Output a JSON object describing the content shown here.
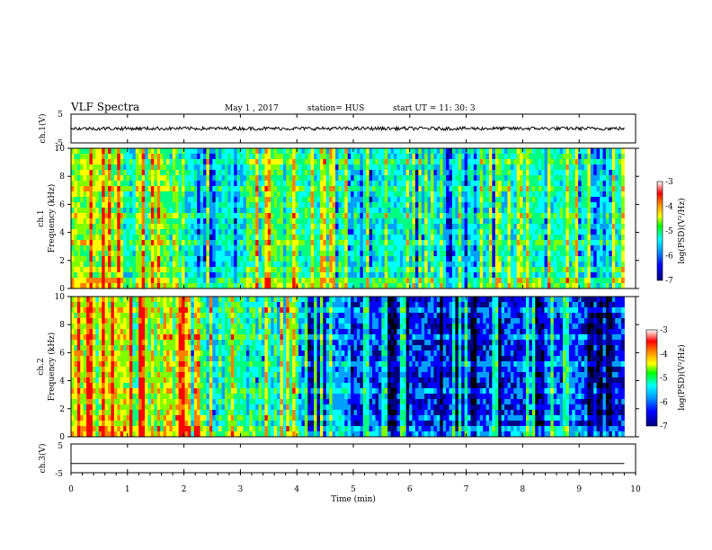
{
  "header": {
    "title": "VLF Spectra",
    "date": "May 1 , 2017",
    "station": "station= HUS",
    "start": "start UT =  11: 30: 3"
  },
  "chart_data": [
    {
      "type": "line",
      "panel": "waveform",
      "ylabel": "ch.1(V)",
      "ylim": [
        -5,
        5
      ],
      "yticks": [
        "5",
        "-5"
      ],
      "x": [
        0,
        9.8
      ],
      "values": [
        0,
        0
      ],
      "amplitude_note_v": 0.6,
      "color": "#000000"
    },
    {
      "type": "heatmap",
      "panel": "ch1-spectrogram",
      "ylabel": "ch.1",
      "ylabel2": "Frequency (kHz)",
      "ylim": [
        0,
        10
      ],
      "yticks": [
        "0",
        "2",
        "4",
        "6",
        "8",
        "10"
      ],
      "xlim": [
        0,
        9.8
      ],
      "colorbar": {
        "label": "log(PSD)(V²/Hz)",
        "ticks": [
          "-3",
          "-4",
          "-5",
          "-6",
          "-7"
        ],
        "range": [
          -7,
          -3
        ]
      },
      "intensity_by_minute": [
        0.65,
        0.62,
        0.45,
        0.58,
        0.5,
        0.45,
        0.4,
        0.45,
        0.5,
        0.48
      ]
    },
    {
      "type": "heatmap",
      "panel": "ch2-spectrogram",
      "ylabel": "ch.2",
      "ylabel2": "Frequency (kHz)",
      "ylim": [
        0,
        10
      ],
      "yticks": [
        "0",
        "2",
        "4",
        "6",
        "8",
        "10"
      ],
      "xlim": [
        0,
        9.8
      ],
      "colorbar": {
        "label": "log(PSD)(V²/Hz)",
        "ticks": [
          "-3",
          "-4",
          "-5",
          "-6",
          "-7"
        ],
        "range": [
          -7,
          -3
        ]
      },
      "intensity_by_minute": [
        0.7,
        0.72,
        0.55,
        0.55,
        0.35,
        0.25,
        0.25,
        0.25,
        0.3,
        0.25
      ]
    },
    {
      "type": "line",
      "panel": "ch3-waveform",
      "ylabel": "ch.3(V)",
      "ylim": [
        -5,
        5
      ],
      "yticks": [
        "5",
        "-5"
      ],
      "x": [
        0,
        9.8
      ],
      "values": [
        -1.8,
        -1.8
      ],
      "color": "#000000"
    }
  ],
  "xaxis": {
    "label": "Time (min)",
    "ticks": [
      "0",
      "1",
      "2",
      "3",
      "4",
      "5",
      "6",
      "7",
      "8",
      "9",
      "10"
    ],
    "xlim": [
      0,
      10
    ]
  },
  "colors": {
    "colormap": [
      "#000000",
      "#000080",
      "#0000ff",
      "#00a0ff",
      "#00ffff",
      "#00ff80",
      "#80ff00",
      "#ffff00",
      "#ff8000",
      "#ff0000",
      "#ffffff"
    ]
  }
}
